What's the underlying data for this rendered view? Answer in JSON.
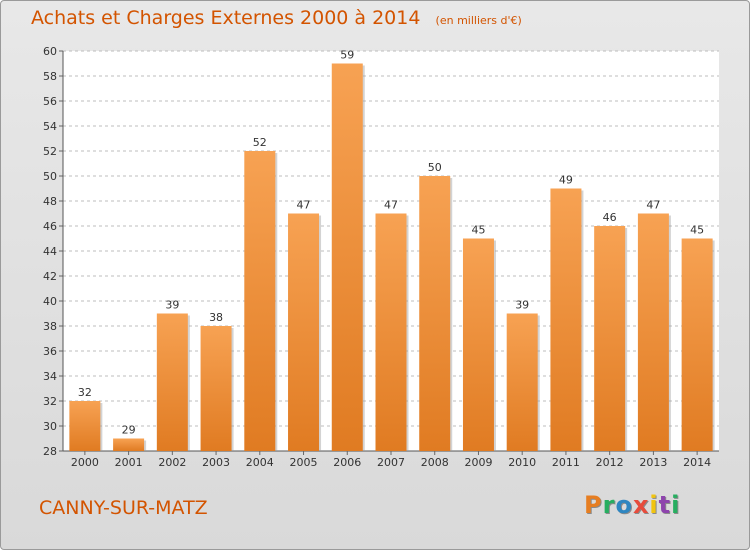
{
  "header": {
    "title": "Achats et Charges Externes 2000 à 2014",
    "unit": "(en milliers d'€)"
  },
  "footer": {
    "commune": "CANNY-SUR-MATZ",
    "logo": "Proxiti"
  },
  "colors": {
    "title": "#d35400",
    "bar_light": "#f7a253",
    "bar_dark": "#e07b22",
    "grid": "#bdbdbd",
    "logo_letters": [
      "#e67e22",
      "#27ae60",
      "#2e86c1",
      "#e74c3c",
      "#f1c40f",
      "#8e44ad",
      "#27ae60"
    ]
  },
  "chart_data": {
    "type": "bar",
    "title": "Achats et Charges Externes 2000 à 2014",
    "subtitle": "(en milliers d'€)",
    "categories": [
      "2000",
      "2001",
      "2002",
      "2003",
      "2004",
      "2005",
      "2006",
      "2007",
      "2008",
      "2009",
      "2010",
      "2011",
      "2012",
      "2013",
      "2014"
    ],
    "values": [
      32,
      29,
      39,
      38,
      52,
      47,
      59,
      47,
      50,
      45,
      39,
      49,
      46,
      47,
      45
    ],
    "ylim": [
      28,
      60
    ],
    "yticks": [
      28,
      30,
      32,
      34,
      36,
      38,
      40,
      42,
      44,
      46,
      48,
      50,
      52,
      54,
      56,
      58,
      60
    ],
    "grid": true,
    "xlabel": "",
    "ylabel": ""
  }
}
